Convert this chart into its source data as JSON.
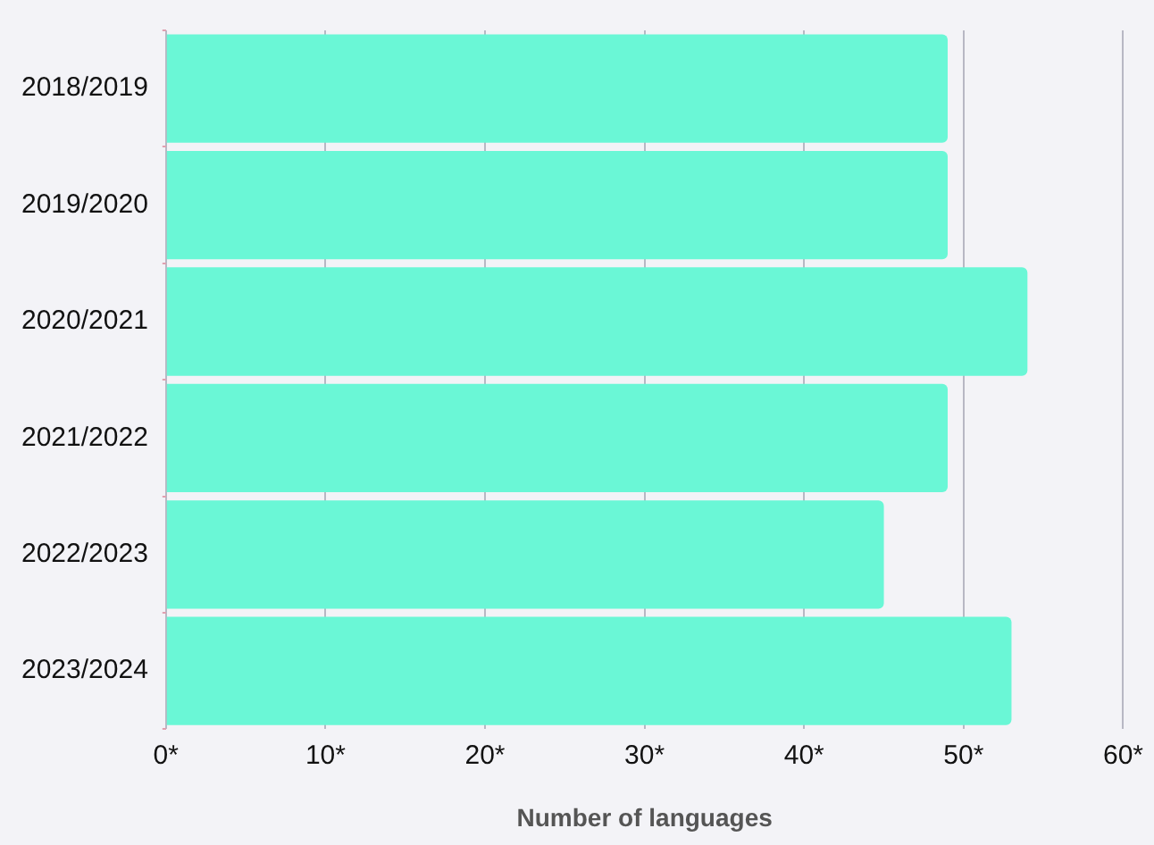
{
  "chart_data": {
    "type": "bar",
    "orientation": "horizontal",
    "xlabel": "Number of languages",
    "categories": [
      "2018/2019",
      "2019/2020",
      "2020/2021",
      "2021/2022",
      "2022/2023",
      "2023/2024"
    ],
    "values": [
      49,
      49,
      54,
      49,
      45,
      53
    ],
    "color": "#6af7d6",
    "xlim": [
      0,
      60
    ],
    "xticks": [
      {
        "value": 0,
        "label": "0*"
      },
      {
        "value": 10,
        "label": "10*"
      },
      {
        "value": 20,
        "label": "20*"
      },
      {
        "value": 30,
        "label": "30*"
      },
      {
        "value": 40,
        "label": "40*"
      },
      {
        "value": 50,
        "label": "50*"
      },
      {
        "value": 60,
        "label": "60*"
      }
    ],
    "grid": "x",
    "legend": false
  }
}
